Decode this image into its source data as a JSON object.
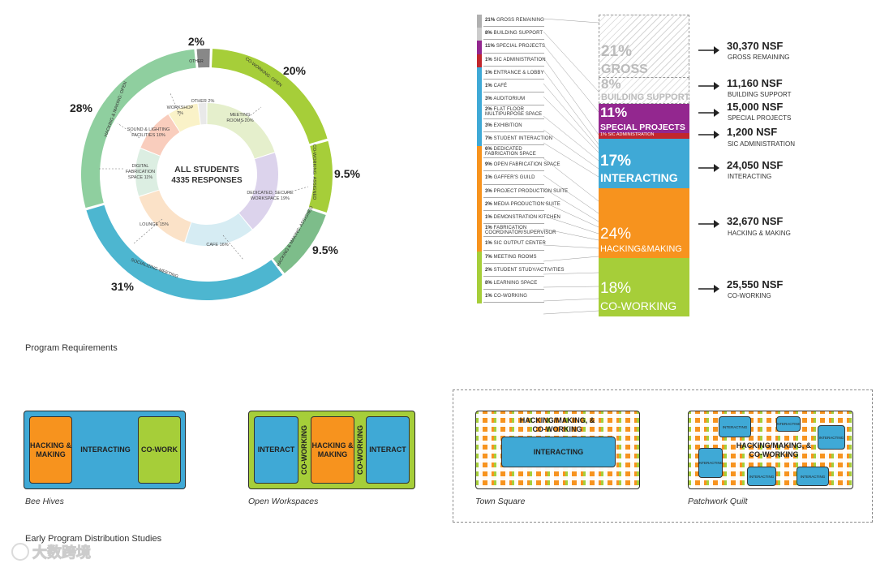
{
  "donut": {
    "center_title": "ALL STUDENTS",
    "center_sub": "4335 RESPONSES",
    "outer": [
      {
        "label": "CO-WORKING: OPEN",
        "pct": "20%",
        "value": 20,
        "color": "#a6ce39"
      },
      {
        "label": "CO-WORKING: ASSIGNED",
        "pct": "9.5%",
        "value": 9.5,
        "color": "#a6ce39"
      },
      {
        "label": "HACKING & MAKING: ASSIGNED",
        "pct": "9.5%",
        "value": 9.5,
        "color": "#7dbd8a"
      },
      {
        "label": "SOCIALIZING-MEETING",
        "pct": "31%",
        "value": 31,
        "color": "#4db6d0"
      },
      {
        "label": "HACKING & MAKING: OPEN",
        "pct": "28%",
        "value": 28,
        "color": "#8fcf9f"
      },
      {
        "label": "OTHER",
        "pct": "2%",
        "value": 2,
        "color": "#888888"
      }
    ],
    "inner": [
      {
        "label": "MEETING ROOMS",
        "pct": "20%",
        "value": 20,
        "color": "#e5efcc"
      },
      {
        "label": "DEDICATED, SECURE WORKSPACE",
        "pct": "19%",
        "value": 19,
        "color": "#dcd3ec"
      },
      {
        "label": "CAFE",
        "pct": "16%",
        "value": 16,
        "color": "#d6ecf3"
      },
      {
        "label": "LOUNGE",
        "pct": "15%",
        "value": 15,
        "color": "#fbe2c8"
      },
      {
        "label": "DIGITAL FABRICATION SPACE",
        "pct": "11%",
        "value": 11,
        "color": "#dceee2"
      },
      {
        "label": "SOUND & LIGHTING FACILITIES",
        "pct": "10%",
        "value": 10,
        "color": "#f9cdbd"
      },
      {
        "label": "WORKSHOP",
        "pct": "7%",
        "value": 7,
        "color": "#faf2c8"
      },
      {
        "label": "OTHER",
        "pct": "2%",
        "value": 2,
        "color": "#e9e9e9"
      }
    ]
  },
  "program_list": [
    {
      "pct": "21%",
      "name": "GROSS REMAINING",
      "color": "#b0b0b0"
    },
    {
      "pct": "8%",
      "name": "BUILDING SUPPORT",
      "color": "#cccccc"
    },
    {
      "pct": "11%",
      "name": "SPECIAL PROJECTS",
      "color": "#93278f"
    },
    {
      "pct": "1%",
      "name": "SIC ADMINISTRATION",
      "color": "#c1272d"
    },
    {
      "pct": "1%",
      "name": "ENTRANCE & LOBBY",
      "color": "#3fa9d6"
    },
    {
      "pct": "1%",
      "name": "CAFÉ",
      "color": "#3fa9d6"
    },
    {
      "pct": "3%",
      "name": "AUDITORIUM",
      "color": "#3fa9d6"
    },
    {
      "pct": "2%",
      "name": "FLAT FLOOR",
      "name2": "MULTIPURPOSE SPACE",
      "color": "#3fa9d6"
    },
    {
      "pct": "3%",
      "name": "EXHIBITION",
      "color": "#3fa9d6"
    },
    {
      "pct": "7%",
      "name": "STUDENT INTERACTION",
      "color": "#3fa9d6"
    },
    {
      "pct": "6%",
      "name": "DEDICATED",
      "name2": "FABRICATION SPACE",
      "color": "#f7931e"
    },
    {
      "pct": "9%",
      "name": "OPEN FABRICATION SPACE",
      "color": "#f7931e"
    },
    {
      "pct": "1%",
      "name": "GAFFER'S GUILD",
      "color": "#f7931e"
    },
    {
      "pct": "3%",
      "name": "PROJECT PRODUCTION SUITE",
      "color": "#f7931e"
    },
    {
      "pct": "2%",
      "name": "MEDIA PRODUCTION SUITE",
      "color": "#f7931e"
    },
    {
      "pct": "1%",
      "name": "DEMONSTRATION KITCHEN",
      "color": "#f7931e"
    },
    {
      "pct": "1%",
      "name": "FABRICATION",
      "name2": "COORDINATOR/SUPERVISOR",
      "color": "#f7931e"
    },
    {
      "pct": "1%",
      "name": "SIC OUTPUT CENTER",
      "color": "#f7931e"
    },
    {
      "pct": "7%",
      "name": "MEETING ROOMS",
      "color": "#a6ce39"
    },
    {
      "pct": "2%",
      "name": "STUDENT STUDY/ACTIVITIES",
      "color": "#a6ce39"
    },
    {
      "pct": "8%",
      "name": "LEARNING SPACE",
      "color": "#a6ce39"
    },
    {
      "pct": "1%",
      "name": "CO-WORKING",
      "color": "#a6ce39"
    }
  ],
  "stack": {
    "gross_pct": "21%",
    "gross_label": "GROSS",
    "support_pct": "8%",
    "support_label": "BUILDING SUPPORT",
    "special_pct": "11%",
    "special_label": "SPECIAL PROJECTS",
    "special_sub": "1% SIC ADMINISTRATION",
    "interact_pct": "17%",
    "interact_label": "INTERACTING",
    "hack_pct": "24%",
    "hack_label": "HACKING&MAKING",
    "cowork_pct": "18%",
    "cowork_label": "CO-WORKING"
  },
  "nsf": [
    {
      "value": "30,370 NSF",
      "label": "GROSS REMAINING"
    },
    {
      "value": "11,160 NSF",
      "label": "BUILDING SUPPORT"
    },
    {
      "value": "15,000 NSF",
      "label": "SPECIAL PROJECTS"
    },
    {
      "value": "1,200 NSF",
      "label": "SIC ADMINISTRATION"
    },
    {
      "value": "24,050 NSF",
      "label": "INTERACTING"
    },
    {
      "value": "32,670 NSF",
      "label": "HACKING & MAKING"
    },
    {
      "value": "25,550 NSF",
      "label": "CO-WORKING"
    }
  ],
  "program_requirements_title": "Program Requirements",
  "studies_title": "Early Program Distribution Studies",
  "studies": {
    "bee_hives": {
      "caption": "Bee Hives",
      "hack": "HACKING & MAKING",
      "interact": "INTERACTING",
      "cowork": "CO-WORK"
    },
    "open_workspaces": {
      "caption": "Open Workspaces",
      "interact1": "INTERACT",
      "cowork1": "CO-WORKING",
      "hack": "HACKING & MAKING",
      "cowork2": "CO-WORKING",
      "interact2": "INTERACT"
    },
    "town_square": {
      "caption": "Town Square",
      "top": "HACKING/MAKING, & CO-WORKING",
      "center": "INTERACTING"
    },
    "patchwork_quilt": {
      "caption": "Patchwork Quilt",
      "center": "HACKING/MAKING, & CO-WORKING",
      "tile": "INTERACTING"
    }
  },
  "watermark": "大数跨境",
  "colors": {
    "green": "#a6ce39",
    "blue": "#3fa9d6",
    "orange": "#f7931e",
    "purple": "#93278f",
    "teal": "#4db6d0"
  }
}
